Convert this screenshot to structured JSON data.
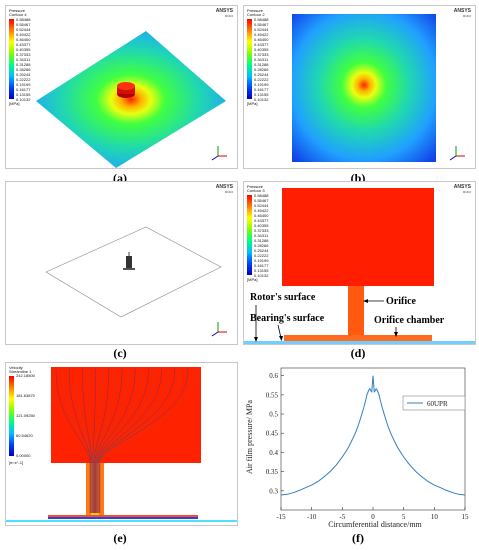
{
  "panels": {
    "a": {
      "caption": "(a)",
      "legend_title": [
        "Pressure",
        "Contour 4"
      ],
      "legend_ticks": [
        "0.58488",
        "0.55467",
        "0.52444",
        "0.49422",
        "0.46400",
        "0.43377",
        "0.40355",
        "0.37333",
        "0.34311",
        "0.31288",
        "0.28266",
        "0.25244",
        "0.22222",
        "0.19199",
        "0.16177",
        "0.13155",
        "0.10132"
      ],
      "legend_unit": "[MPa]"
    },
    "b": {
      "caption": "(b)",
      "legend_title": [
        "Pressure",
        "Contour 2"
      ],
      "legend_ticks": [
        "0.58488",
        "0.55467",
        "0.52444",
        "0.49422",
        "0.46400",
        "0.43377",
        "0.40355",
        "0.37333",
        "0.34311",
        "0.31288",
        "0.28266",
        "0.25244",
        "0.22222",
        "0.19199",
        "0.16177",
        "0.13155",
        "0.10132"
      ],
      "legend_unit": "[MPa]"
    },
    "c": {
      "caption": "(c)"
    },
    "d": {
      "caption": "(d)",
      "legend_title": [
        "Pressure",
        "Contour 3"
      ],
      "legend_ticks": [
        "0.58488",
        "0.55467",
        "0.52444",
        "0.49422",
        "0.46400",
        "0.43377",
        "0.40355",
        "0.37333",
        "0.34311",
        "0.31288",
        "0.28266",
        "0.25244",
        "0.22222",
        "0.19199",
        "0.16177",
        "0.13155",
        "0.10132"
      ],
      "legend_unit": "[MPa]",
      "labels": {
        "rotor_surface": "Rotor's surface",
        "orifice": "Orifice",
        "bearing_surface": "Bearing's surface",
        "orifice_chamber": "Orifice chamber"
      }
    },
    "e": {
      "caption": "(e)",
      "legend_title": [
        "Velocity",
        "Streamline 1"
      ],
      "legend_ticks": [
        "242.18500",
        "181.63870",
        "121.09250",
        "60.54620",
        "0.00000"
      ],
      "legend_unit": "[m s^-1]"
    },
    "f": {
      "caption": "(f)"
    }
  },
  "brand": {
    "name": "ANSYS",
    "version": "R19.0"
  },
  "chart_data": {
    "type": "line",
    "xlabel": "Circumferential distance/mm",
    "ylabel": "Air film pressure/ MPa",
    "xlim": [
      -15,
      15
    ],
    "ylim": [
      0.25,
      0.62
    ],
    "xticks": [
      -15,
      -10,
      -5,
      0,
      5,
      10,
      15
    ],
    "yticks": [
      0.3,
      0.35,
      0.4,
      0.45,
      0.5,
      0.55,
      0.6
    ],
    "legend": "top-right",
    "grid": false,
    "series": [
      {
        "name": "60UPR",
        "color": "#2f7fc1",
        "x": [
          -15,
          -14,
          -13,
          -12,
          -11,
          -10,
          -9,
          -8,
          -7,
          -6,
          -5,
          -4,
          -3,
          -2.5,
          -2,
          -1.5,
          -1.2,
          -1,
          -0.7,
          -0.5,
          -0.35,
          -0.2,
          -0.1,
          0,
          0.1,
          0.2,
          0.35,
          0.5,
          0.7,
          1,
          1.2,
          1.5,
          2,
          2.5,
          3,
          4,
          5,
          6,
          7,
          8,
          9,
          10,
          11,
          12,
          13,
          14,
          15
        ],
        "y": [
          0.289,
          0.291,
          0.295,
          0.301,
          0.308,
          0.315,
          0.324,
          0.336,
          0.35,
          0.367,
          0.388,
          0.413,
          0.446,
          0.466,
          0.49,
          0.517,
          0.535,
          0.55,
          0.562,
          0.566,
          0.56,
          0.558,
          0.58,
          0.6,
          0.58,
          0.558,
          0.56,
          0.566,
          0.562,
          0.55,
          0.535,
          0.517,
          0.49,
          0.466,
          0.446,
          0.413,
          0.388,
          0.367,
          0.35,
          0.336,
          0.324,
          0.315,
          0.308,
          0.301,
          0.295,
          0.291,
          0.289
        ]
      }
    ]
  }
}
